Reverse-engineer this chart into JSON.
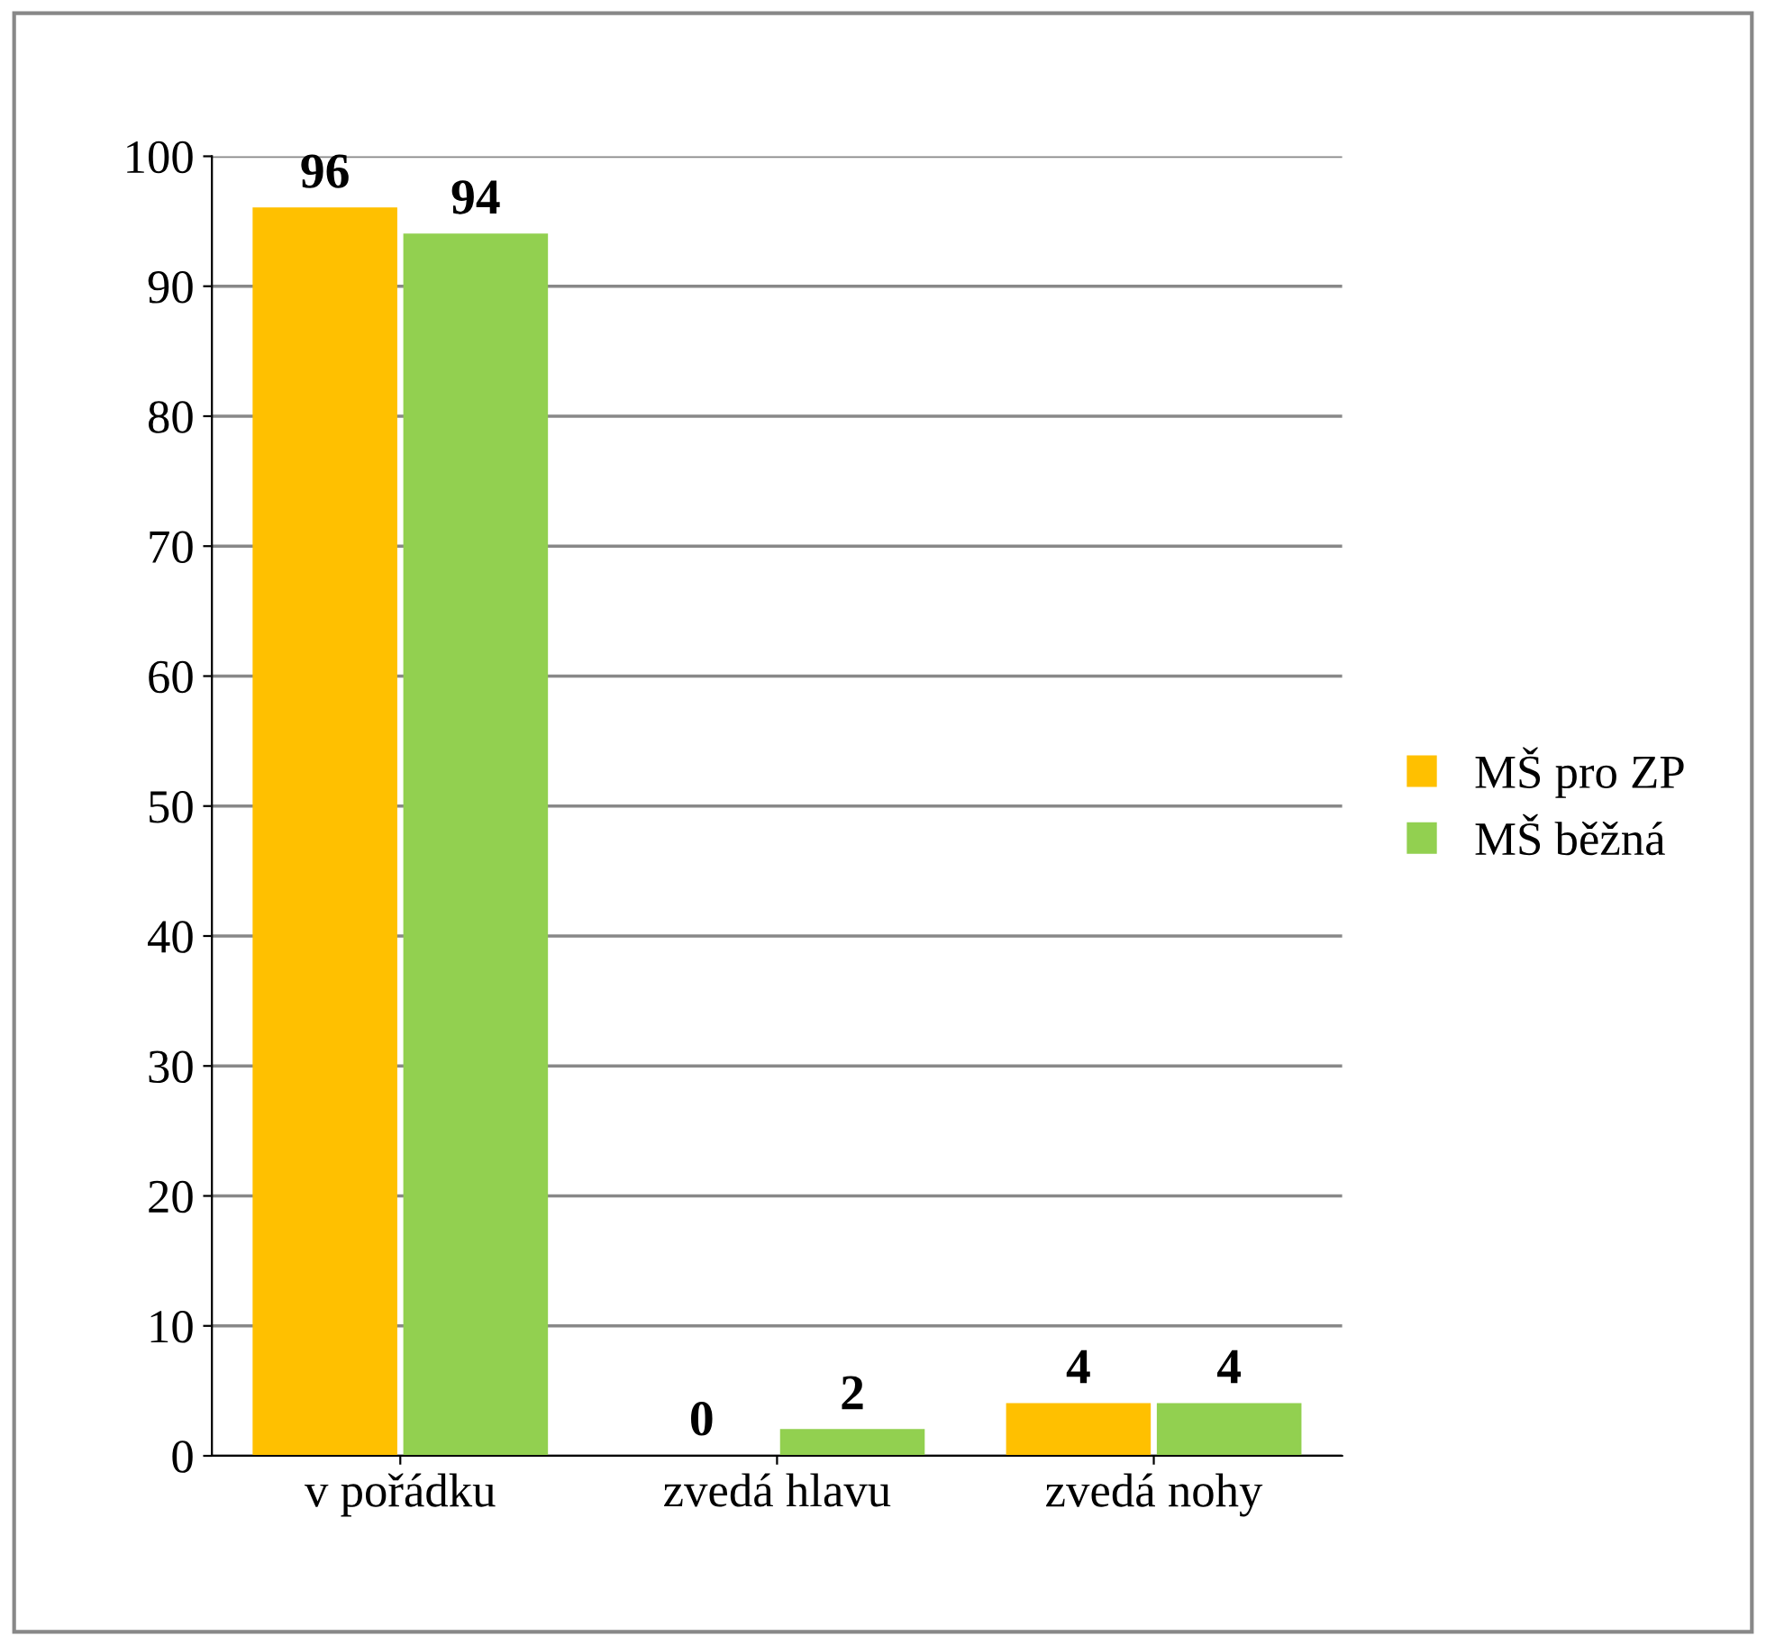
{
  "chart_data": {
    "type": "bar",
    "categories": [
      "v pořádku",
      "zvedá hlavu",
      "zvedá nohy"
    ],
    "series": [
      {
        "name": "MŠ pro ZP",
        "color": "#ffc000",
        "values": [
          96,
          0,
          4
        ]
      },
      {
        "name": "MŠ běžná",
        "color": "#92d050",
        "values": [
          94,
          2,
          4
        ]
      }
    ],
    "ylim": [
      0,
      100
    ],
    "yticks": [
      0,
      10,
      20,
      30,
      40,
      50,
      60,
      70,
      80,
      90,
      100
    ],
    "grid": "y",
    "legend": "right",
    "data_labels": true
  }
}
